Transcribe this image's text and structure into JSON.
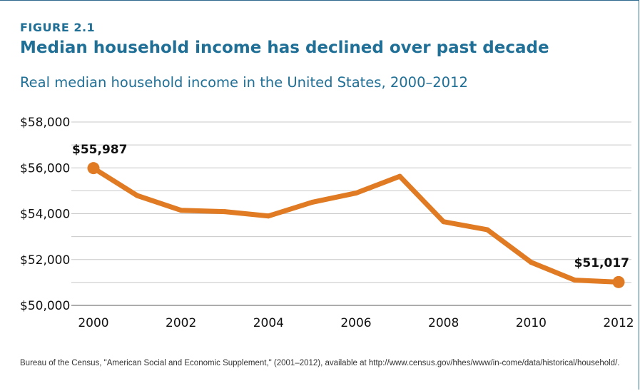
{
  "figure": {
    "label": "FIGURE 2.1",
    "title": "Median household income has declined over past decade",
    "subtitle": "Real median household income in the United States, 2000–2012",
    "source": "Bureau of the Census, \"American Social and Economic Supplement,\" (2001–2012), available at http://www.census.gov/hhes/www/in-come/data/historical/household/."
  },
  "colors": {
    "accent": "#1f6f96",
    "line": "#e07b24",
    "grid": "#c8c8c8",
    "border": "#2f6b8e"
  },
  "chart_data": {
    "type": "line",
    "x": [
      2000,
      2001,
      2002,
      2003,
      2004,
      2005,
      2006,
      2007,
      2008,
      2009,
      2010,
      2011,
      2012
    ],
    "series": [
      {
        "values": [
          55987,
          54790,
          54150,
          54090,
          53900,
          54500,
          54900,
          55630,
          53650,
          53300,
          51880,
          51100,
          51017
        ]
      }
    ],
    "xlim": [
      2000,
      2012
    ],
    "ylim": [
      50000,
      58000
    ],
    "y_gridlines": [
      50000,
      51000,
      52000,
      53000,
      54000,
      55000,
      56000,
      57000,
      58000
    ],
    "y_ticks": [
      {
        "value": 58000,
        "label": "$58,000"
      },
      {
        "value": 56000,
        "label": "$56,000"
      },
      {
        "value": 54000,
        "label": "$54,000"
      },
      {
        "value": 52000,
        "label": "$52,000"
      },
      {
        "value": 50000,
        "label": "$50,000"
      }
    ],
    "x_ticks": [
      {
        "value": 2000,
        "label": "2000"
      },
      {
        "value": 2002,
        "label": "2002"
      },
      {
        "value": 2004,
        "label": "2004"
      },
      {
        "value": 2006,
        "label": "2006"
      },
      {
        "value": 2008,
        "label": "2008"
      },
      {
        "value": 2010,
        "label": "2010"
      },
      {
        "value": 2012,
        "label": "2012"
      }
    ],
    "annotations": [
      {
        "x": 2000,
        "y": 55987,
        "label": "$55,987"
      },
      {
        "x": 2012,
        "y": 51017,
        "label": "$51,017"
      }
    ],
    "grid": true,
    "legend": "none"
  }
}
